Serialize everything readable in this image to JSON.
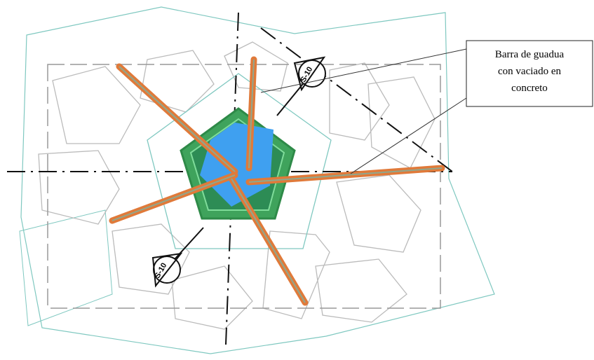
{
  "callout": {
    "lines": [
      "Barra de guadua",
      "con vaciado en",
      "concreto"
    ]
  },
  "section_marks": [
    {
      "label": "S-10"
    },
    {
      "label": "S-10"
    }
  ]
}
